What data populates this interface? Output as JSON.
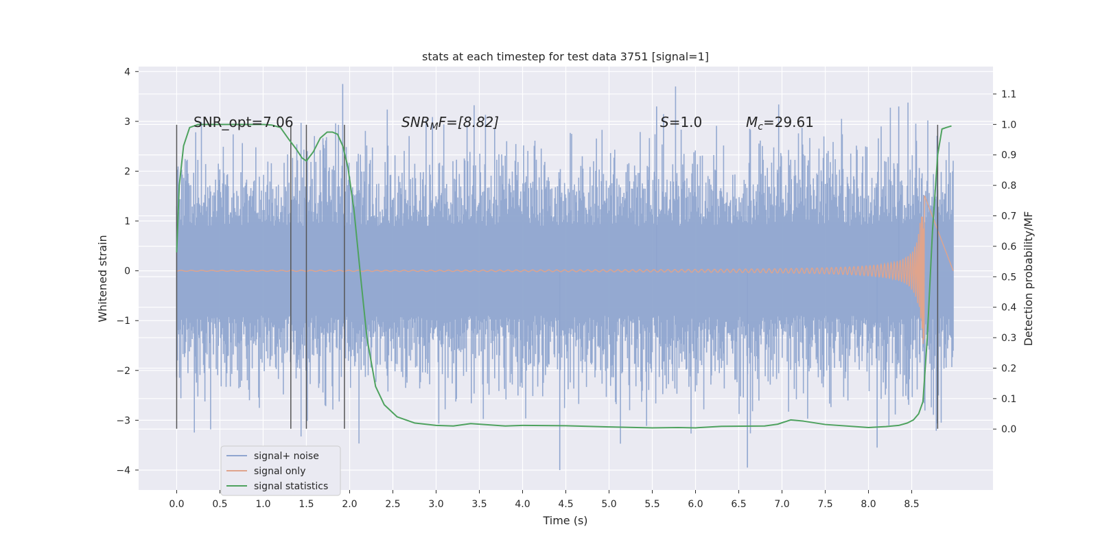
{
  "chart_data": {
    "type": "line",
    "title": "stats at each timestep for test data 3751 [signal=1]",
    "xlabel": "Time (s)",
    "ylabel": "Whitened strain",
    "ylabel_right": "Detection probability/MF",
    "xlim": [
      -0.44,
      9.44
    ],
    "ylim": [
      -4.4,
      4.1
    ],
    "ylim_right": [
      -0.2,
      1.19
    ],
    "x_ticks": [
      "0.0",
      "0.5",
      "1.0",
      "1.5",
      "2.0",
      "2.5",
      "3.0",
      "3.5",
      "4.0",
      "4.5",
      "5.0",
      "5.5",
      "6.0",
      "6.5",
      "7.0",
      "7.5",
      "8.0",
      "8.5"
    ],
    "y_ticks": [
      "−4",
      "−3",
      "−2",
      "−1",
      "0",
      "1",
      "2",
      "3",
      "4"
    ],
    "y_right_ticks": [
      "0.0",
      "0.1",
      "0.2",
      "0.3",
      "0.4",
      "0.5",
      "0.6",
      "0.7",
      "0.8",
      "0.9",
      "1.0",
      "1.1"
    ],
    "grid": true,
    "legend_position": "lower-left",
    "annotations": {
      "snr_opt": "SNR_opt=7.06",
      "snr_mf_main": "SNR",
      "snr_mf_sub": "M",
      "snr_mf_rest": "F=[8.82]",
      "s_main": "S",
      "s_rest": "=1.0",
      "mc_main": "M",
      "mc_sub": "c",
      "mc_rest": "=29.61"
    },
    "vertical_markers": [
      0.0,
      1.32,
      1.5,
      1.94,
      8.8
    ],
    "series": [
      {
        "name": "signal+ noise",
        "color": "#8fa5cf",
        "description_values": {
          "x_range": [
            0.0,
            8.98
          ],
          "typical_amplitude": 1.6,
          "extremes": [
            -4.0,
            3.75
          ]
        }
      },
      {
        "name": "signal only",
        "color": "#e0a48c",
        "chirp": {
          "start": 0.0,
          "merger": 8.65,
          "peak_amplitude": 1.5
        }
      },
      {
        "name": "signal statistics",
        "color": "#4ea25e",
        "axis": "right",
        "x": [
          0.0,
          0.03,
          0.08,
          0.15,
          0.25,
          0.4,
          0.6,
          0.8,
          1.0,
          1.1,
          1.2,
          1.3,
          1.38,
          1.45,
          1.5,
          1.58,
          1.66,
          1.74,
          1.8,
          1.86,
          1.92,
          1.98,
          2.05,
          2.12,
          2.2,
          2.3,
          2.4,
          2.55,
          2.75,
          3.0,
          3.2,
          3.4,
          3.6,
          3.8,
          4.0,
          4.5,
          5.0,
          5.5,
          5.8,
          6.0,
          6.3,
          6.8,
          6.95,
          7.1,
          7.25,
          7.5,
          8.0,
          8.2,
          8.35,
          8.45,
          8.52,
          8.58,
          8.63,
          8.68,
          8.74,
          8.8,
          8.85,
          8.9,
          8.96
        ],
        "y": [
          0.58,
          0.8,
          0.93,
          0.99,
          1.0,
          1.0,
          1.0,
          1.0,
          1.0,
          0.998,
          0.99,
          0.95,
          0.92,
          0.89,
          0.88,
          0.91,
          0.955,
          0.975,
          0.975,
          0.968,
          0.93,
          0.86,
          0.72,
          0.52,
          0.3,
          0.14,
          0.08,
          0.04,
          0.02,
          0.012,
          0.01,
          0.018,
          0.014,
          0.01,
          0.012,
          0.011,
          0.007,
          0.004,
          0.005,
          0.004,
          0.009,
          0.01,
          0.016,
          0.03,
          0.026,
          0.015,
          0.005,
          0.008,
          0.012,
          0.02,
          0.03,
          0.05,
          0.09,
          0.3,
          0.65,
          0.9,
          0.985,
          0.99,
          0.995
        ]
      }
    ]
  }
}
